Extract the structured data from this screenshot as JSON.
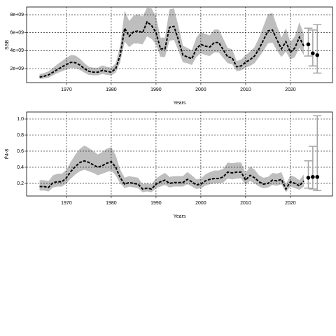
{
  "chart_data": [
    {
      "type": "line",
      "xlabel": "Years",
      "ylabel": "SSB",
      "grid": true,
      "color": "#000000",
      "band_color": "#bebebe",
      "bar_color": "#a6a6a6",
      "xlim": [
        1961.1,
        2029.4
      ],
      "xticks": [
        1970,
        1980,
        1990,
        2000,
        2010,
        2020
      ],
      "ylim": [
        440000000.0,
        8860000000.0
      ],
      "yticks": [
        {
          "value": 2000000000.0,
          "label": "2e+09"
        },
        {
          "value": 4000000000.0,
          "label": "4e+09"
        },
        {
          "value": 6000000000.0,
          "label": "6e+09"
        },
        {
          "value": 8000000000.0,
          "label": "8e+09"
        }
      ],
      "x": [
        1964,
        1965,
        1966,
        1967,
        1968,
        1969,
        1970,
        1971,
        1972,
        1973,
        1974,
        1975,
        1976,
        1977,
        1978,
        1979,
        1980,
        1981,
        1982,
        1983,
        1984,
        1985,
        1986,
        1987,
        1988,
        1989,
        1990,
        1991,
        1992,
        1993,
        1994,
        1995,
        1996,
        1997,
        1998,
        1999,
        2000,
        2001,
        2002,
        2003,
        2004,
        2005,
        2006,
        2007,
        2008,
        2009,
        2010,
        2011,
        2012,
        2013,
        2014,
        2015,
        2016,
        2017,
        2018,
        2019,
        2020,
        2021,
        2022,
        2023
      ],
      "values": [
        1060000000.0,
        1150000000.0,
        1300000000.0,
        1600000000.0,
        1900000000.0,
        2200000000.0,
        2450000000.0,
        2700000000.0,
        2650000000.0,
        2400000000.0,
        2000000000.0,
        1700000000.0,
        1600000000.0,
        1600000000.0,
        1800000000.0,
        1700000000.0,
        1600000000.0,
        2000000000.0,
        3500000000.0,
        6500000000.0,
        5600000000.0,
        6100000000.0,
        6200000000.0,
        6000000000.0,
        7200000000.0,
        6800000000.0,
        6000000000.0,
        4200000000.0,
        4200000000.0,
        6600000000.0,
        6700000000.0,
        5200000000.0,
        3500000000.0,
        3300000000.0,
        3100000000.0,
        4200000000.0,
        4700000000.0,
        4500000000.0,
        4400000000.0,
        4900000000.0,
        4900000000.0,
        4100000000.0,
        3300000000.0,
        3200000000.0,
        2200000000.0,
        2300000000.0,
        2700000000.0,
        3000000000.0,
        3400000000.0,
        4200000000.0,
        5200000000.0,
        6200000000.0,
        6300000000.0,
        5200000000.0,
        4200000000.0,
        5000000000.0,
        3800000000.0,
        4300000000.0,
        5500000000.0,
        4500000000.0
      ],
      "lower": [
        830000000.0,
        900000000.0,
        1000000000.0,
        1250000000.0,
        1500000000.0,
        1700000000.0,
        1900000000.0,
        2100000000.0,
        2050000000.0,
        1850000000.0,
        1550000000.0,
        1300000000.0,
        1250000000.0,
        1250000000.0,
        1400000000.0,
        1300000000.0,
        1250000000.0,
        1550000000.0,
        2700000000.0,
        5000000000.0,
        4400000000.0,
        4800000000.0,
        4800000000.0,
        4700000000.0,
        5600000000.0,
        5300000000.0,
        4700000000.0,
        3300000000.0,
        3300000000.0,
        5100000000.0,
        5200000000.0,
        4000000000.0,
        2700000000.0,
        2600000000.0,
        2400000000.0,
        3300000000.0,
        3700000000.0,
        3500000000.0,
        3400000000.0,
        3800000000.0,
        3800000000.0,
        3200000000.0,
        2600000000.0,
        2500000000.0,
        1700000000.0,
        1800000000.0,
        2100000000.0,
        2300000000.0,
        2600000000.0,
        3300000000.0,
        4000000000.0,
        4800000000.0,
        4900000000.0,
        4000000000.0,
        3300000000.0,
        3900000000.0,
        3000000000.0,
        3300000000.0,
        4300000000.0,
        3500000000.0
      ],
      "upper": [
        1380000000.0,
        1500000000.0,
        1700000000.0,
        2100000000.0,
        2500000000.0,
        2850000000.0,
        3200000000.0,
        3500000000.0,
        3450000000.0,
        3100000000.0,
        2600000000.0,
        2200000000.0,
        2100000000.0,
        2100000000.0,
        2350000000.0,
        2200000000.0,
        2100000000.0,
        2600000000.0,
        4550000000.0,
        8450000000.0,
        7300000000.0,
        7900000000.0,
        8050000000.0,
        7800000000.0,
        8800000000.0,
        8700000000.0,
        7800000000.0,
        5450000000.0,
        5450000000.0,
        8600000000.0,
        8700000000.0,
        6750000000.0,
        4550000000.0,
        4300000000.0,
        4050000000.0,
        5450000000.0,
        6100000000.0,
        5850000000.0,
        5700000000.0,
        6350000000.0,
        6350000000.0,
        5350000000.0,
        4300000000.0,
        4150000000.0,
        2850000000.0,
        3000000000.0,
        3500000000.0,
        3900000000.0,
        4400000000.0,
        5450000000.0,
        6750000000.0,
        8050000000.0,
        8200000000.0,
        6750000000.0,
        5450000000.0,
        6500000000.0,
        4950000000.0,
        5600000000.0,
        7150000000.0,
        5850000000.0
      ],
      "projection": {
        "x": [
          2024,
          2025,
          2026
        ],
        "values": [
          4700000000.0,
          3700000000.0,
          3500000000.0
        ],
        "lower": [
          3400000000.0,
          2300000000.0,
          1500000000.0
        ],
        "upper": [
          6500000000.0,
          6300000000.0,
          6900000000.0
        ]
      }
    },
    {
      "type": "line",
      "xlabel": "Years",
      "ylabel": "F̄4-8",
      "grid": true,
      "color": "#000000",
      "band_color": "#bebebe",
      "bar_color": "#a6a6a6",
      "xlim": [
        1961.1,
        2029.4
      ],
      "xticks": [
        1970,
        1980,
        1990,
        2000,
        2010,
        2020
      ],
      "ylim": [
        0.043,
        1.087
      ],
      "yticks": [
        0.2,
        0.4,
        0.6,
        0.8,
        {
          "value": 1,
          "label": "1.0"
        }
      ],
      "x": [
        1964,
        1965,
        1966,
        1967,
        1968,
        1969,
        1970,
        1971,
        1972,
        1973,
        1974,
        1975,
        1976,
        1977,
        1978,
        1979,
        1980,
        1981,
        1982,
        1983,
        1984,
        1985,
        1986,
        1987,
        1988,
        1989,
        1990,
        1991,
        1992,
        1993,
        1994,
        1995,
        1996,
        1997,
        1998,
        1999,
        2000,
        2001,
        2002,
        2003,
        2004,
        2005,
        2006,
        2007,
        2008,
        2009,
        2010,
        2011,
        2012,
        2013,
        2014,
        2015,
        2016,
        2017,
        2018,
        2019,
        2020,
        2021,
        2022,
        2023
      ],
      "values": [
        0.16,
        0.16,
        0.15,
        0.21,
        0.22,
        0.22,
        0.27,
        0.35,
        0.41,
        0.46,
        0.48,
        0.46,
        0.43,
        0.4,
        0.42,
        0.45,
        0.47,
        0.4,
        0.27,
        0.19,
        0.21,
        0.2,
        0.19,
        0.13,
        0.14,
        0.13,
        0.19,
        0.22,
        0.24,
        0.2,
        0.21,
        0.21,
        0.21,
        0.25,
        0.22,
        0.18,
        0.19,
        0.23,
        0.25,
        0.26,
        0.26,
        0.28,
        0.34,
        0.33,
        0.34,
        0.34,
        0.24,
        0.3,
        0.27,
        0.22,
        0.19,
        0.2,
        0.24,
        0.23,
        0.25,
        0.13,
        0.22,
        0.2,
        0.17,
        0.23
      ],
      "lower": [
        0.11,
        0.11,
        0.1,
        0.15,
        0.16,
        0.16,
        0.2,
        0.26,
        0.31,
        0.35,
        0.37,
        0.35,
        0.33,
        0.3,
        0.32,
        0.34,
        0.36,
        0.3,
        0.2,
        0.14,
        0.16,
        0.15,
        0.14,
        0.09,
        0.1,
        0.09,
        0.14,
        0.16,
        0.18,
        0.15,
        0.16,
        0.16,
        0.16,
        0.19,
        0.16,
        0.13,
        0.14,
        0.17,
        0.19,
        0.2,
        0.2,
        0.21,
        0.26,
        0.25,
        0.26,
        0.26,
        0.18,
        0.23,
        0.2,
        0.16,
        0.14,
        0.15,
        0.18,
        0.17,
        0.19,
        0.09,
        0.16,
        0.14,
        0.12,
        0.16
      ],
      "upper": [
        0.24,
        0.24,
        0.23,
        0.3,
        0.32,
        0.32,
        0.37,
        0.47,
        0.56,
        0.63,
        0.67,
        0.64,
        0.6,
        0.56,
        0.59,
        0.63,
        0.65,
        0.55,
        0.37,
        0.27,
        0.29,
        0.28,
        0.27,
        0.19,
        0.2,
        0.19,
        0.26,
        0.3,
        0.33,
        0.28,
        0.29,
        0.29,
        0.29,
        0.34,
        0.3,
        0.25,
        0.26,
        0.31,
        0.34,
        0.36,
        0.36,
        0.38,
        0.46,
        0.45,
        0.46,
        0.46,
        0.33,
        0.41,
        0.37,
        0.3,
        0.27,
        0.28,
        0.33,
        0.32,
        0.34,
        0.19,
        0.3,
        0.28,
        0.24,
        0.31
      ],
      "projection": {
        "x": [
          2024,
          2025,
          2026
        ],
        "values": [
          0.27,
          0.28,
          0.28
        ],
        "lower": [
          0.14,
          0.13,
          0.11
        ],
        "upper": [
          0.48,
          0.66,
          1.04
        ]
      }
    }
  ]
}
